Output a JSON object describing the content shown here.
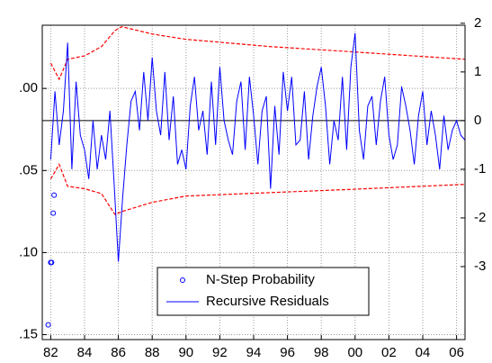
{
  "chart_data": {
    "type": "line",
    "xlim": [
      1981.5,
      2006.5
    ],
    "xticks": [
      {
        "value": 1982,
        "label": "82"
      },
      {
        "value": 1984,
        "label": "84"
      },
      {
        "value": 1986,
        "label": "86"
      },
      {
        "value": 1988,
        "label": "88"
      },
      {
        "value": 1990,
        "label": "90"
      },
      {
        "value": 1992,
        "label": "92"
      },
      {
        "value": 1994,
        "label": "94"
      },
      {
        "value": 1996,
        "label": "96"
      },
      {
        "value": 1998,
        "label": "98"
      },
      {
        "value": 2000,
        "label": "00"
      },
      {
        "value": 2002,
        "label": "02"
      },
      {
        "value": 2004,
        "label": "04"
      },
      {
        "value": 2006,
        "label": "06"
      }
    ],
    "ylim": [
      0.153,
      -0.0385
    ],
    "yticks": [
      {
        "value": 0,
        "label": ".00"
      },
      {
        "value": 0.05,
        "label": ".05"
      },
      {
        "value": 0.1,
        "label": ".10"
      },
      {
        "value": 0.15,
        "label": ".15"
      }
    ],
    "y2lim": [
      -4.5,
      1.96
    ],
    "y2ticks": [
      2,
      1,
      0,
      -1,
      -2,
      -3
    ],
    "grid": true,
    "zero_line": true,
    "legend": "bottom",
    "series": [
      {
        "name": "N-Step Probability",
        "color": "#0000ff",
        "style": "markers",
        "x": [
          1982.2,
          1982.15,
          1982.05,
          1982.0,
          1981.85
        ],
        "values": [
          0.065,
          0.076,
          0.106,
          0.106,
          0.144
        ]
      },
      {
        "name": "Recursive Residuals",
        "color": "#0000ff",
        "style": "line",
        "axis": "y2",
        "x": [
          1982,
          1982.25,
          1982.5,
          1982.75,
          1983,
          1983.25,
          1983.5,
          1983.75,
          1984,
          1984.25,
          1984.5,
          1984.75,
          1985,
          1985.25,
          1985.5,
          1985.75,
          1986,
          1986.25,
          1986.5,
          1986.75,
          1987,
          1987.25,
          1987.5,
          1987.75,
          1988,
          1988.25,
          1988.5,
          1988.75,
          1989,
          1989.25,
          1989.5,
          1989.75,
          1990,
          1990.25,
          1990.5,
          1990.75,
          1991,
          1991.25,
          1991.5,
          1991.75,
          1992,
          1992.25,
          1992.5,
          1992.75,
          1993,
          1993.25,
          1993.5,
          1993.75,
          1994,
          1994.25,
          1994.5,
          1994.75,
          1995,
          1995.25,
          1995.5,
          1995.75,
          1996,
          1996.25,
          1996.5,
          1996.75,
          1997,
          1997.25,
          1997.5,
          1997.75,
          1998,
          1998.25,
          1998.5,
          1998.75,
          1999,
          1999.25,
          1999.5,
          1999.75,
          2000,
          2000.25,
          2000.5,
          2000.75,
          2001,
          2001.25,
          2001.5,
          2001.75,
          2002,
          2002.25,
          2002.5,
          2002.75,
          2003,
          2003.25,
          2003.5,
          2003.75,
          2004,
          2004.25,
          2004.5,
          2004.75,
          2005,
          2005.25,
          2005.5,
          2005.75,
          2006,
          2006.25,
          2006.5
        ],
        "values": [
          -0.8,
          0.6,
          -0.5,
          0.2,
          1.6,
          -1.0,
          0.8,
          -0.3,
          -0.6,
          -1.2,
          0.0,
          -1.0,
          -0.3,
          -0.8,
          0.2,
          -1.3,
          -2.9,
          -1.6,
          -0.5,
          0.4,
          0.6,
          -0.2,
          1.0,
          0.0,
          1.3,
          0.2,
          -0.3,
          1.0,
          -0.4,
          0.5,
          -0.9,
          -0.6,
          -1.0,
          0.3,
          0.9,
          -0.2,
          0.2,
          -0.7,
          0.8,
          -0.5,
          1.1,
          0.0,
          -0.4,
          -0.7,
          0.4,
          0.8,
          -0.6,
          0.9,
          0.1,
          -0.9,
          0.2,
          0.5,
          -1.4,
          0.3,
          -0.7,
          1.0,
          0.2,
          0.9,
          -0.5,
          -0.4,
          0.6,
          -0.8,
          0.1,
          0.7,
          1.1,
          0.3,
          -0.9,
          0.0,
          -0.4,
          0.9,
          -0.6,
          1.1,
          1.8,
          -0.2,
          -0.8,
          0.3,
          0.5,
          -0.5,
          0.4,
          0.9,
          -0.3,
          -0.8,
          -0.5,
          0.7,
          0.3,
          -0.2,
          -0.9,
          0.1,
          0.6,
          -0.5,
          0.2,
          -0.3,
          -1.0,
          0.1,
          -0.6,
          -0.2,
          0.0,
          -0.3,
          -0.4
        ]
      }
    ],
    "bands": {
      "color": "#ff0000",
      "dashed": true,
      "axis": "y2",
      "x": [
        1982,
        1982.5,
        1983,
        1984,
        1985,
        1985.8,
        1986.2,
        1988,
        1990,
        1995,
        2000,
        2006.5
      ],
      "upper": [
        1.18,
        0.85,
        1.26,
        1.33,
        1.52,
        1.85,
        1.93,
        1.78,
        1.67,
        1.52,
        1.41,
        1.26
      ],
      "lower": [
        -1.2,
        -0.9,
        -1.35,
        -1.4,
        -1.5,
        -1.93,
        -1.87,
        -1.68,
        -1.55,
        -1.48,
        -1.41,
        -1.31
      ]
    }
  }
}
